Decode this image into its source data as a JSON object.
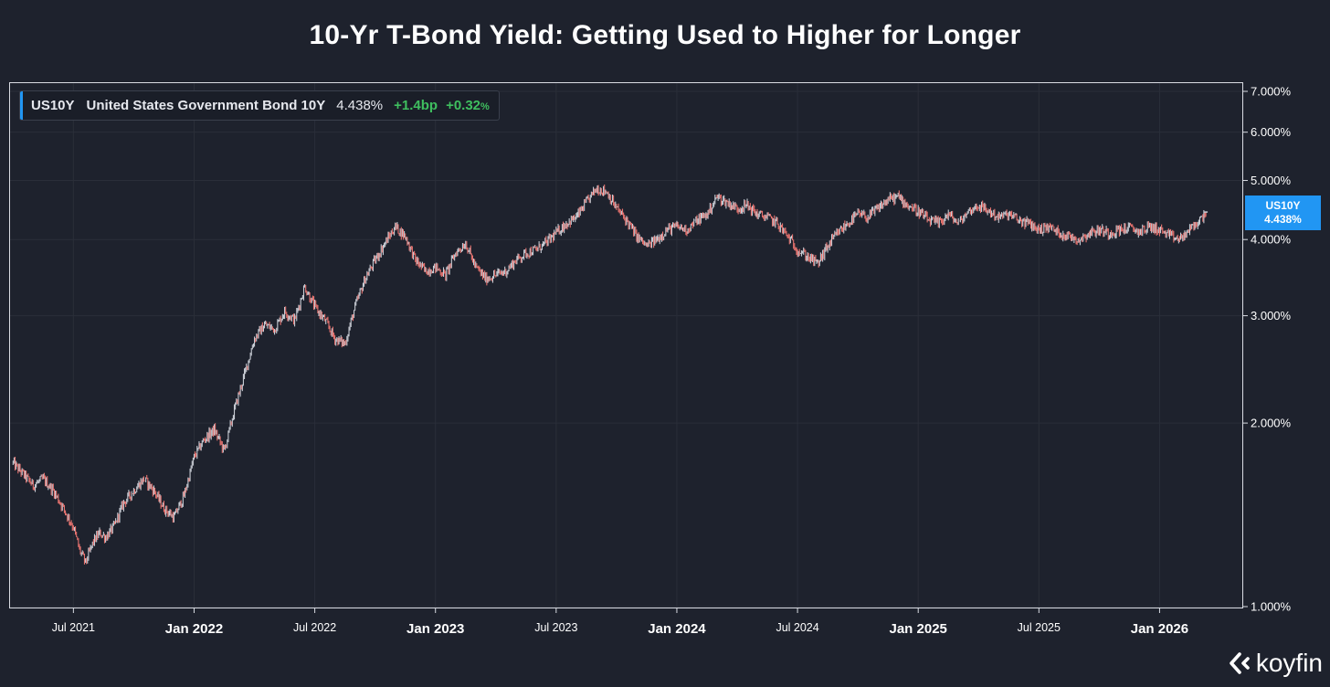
{
  "title": "10-Yr T-Bond Yield: Getting Used to Higher for Longer",
  "legend": {
    "symbol": "US10Y",
    "name": "United States Government Bond 10Y",
    "value": "4.438%",
    "change_bp": "+1.4bp",
    "change_pct": "+0.32",
    "change_pct_unit": "%"
  },
  "price_tag": {
    "symbol": "US10Y",
    "value": "4.438%"
  },
  "brand": {
    "name": "koyfin",
    "logo_icon": "koyfin-chevron-icon"
  },
  "colors": {
    "background": "#1e222d",
    "up_candle": "#c8ccd4",
    "down_candle": "#e8736f",
    "accent": "#2196f3",
    "positive": "#3fbf5f",
    "grid": "#2a2e39"
  },
  "chart_data": {
    "type": "candlestick-line",
    "title": "10-Yr T-Bond Yield: Getting Used to Higher for Longer",
    "xlabel": "",
    "ylabel": "",
    "yscale": "log",
    "ylim": [
      1.0,
      7.0
    ],
    "xlim": [
      "2021-04",
      "2026-03"
    ],
    "y_ticks": [
      {
        "value": 1.0,
        "label": "1.000%"
      },
      {
        "value": 2.0,
        "label": "2.000%"
      },
      {
        "value": 3.0,
        "label": "3.000%"
      },
      {
        "value": 4.0,
        "label": "4.000%"
      },
      {
        "value": 5.0,
        "label": "5.000%"
      },
      {
        "value": 6.0,
        "label": "6.000%"
      },
      {
        "value": 7.0,
        "label": "7.000%"
      }
    ],
    "x_ticks": [
      {
        "t": 3,
        "label": "Jul 2021",
        "major": false
      },
      {
        "t": 9,
        "label": "Jan 2022",
        "major": true
      },
      {
        "t": 15,
        "label": "Jul 2022",
        "major": false
      },
      {
        "t": 21,
        "label": "Jan 2023",
        "major": true
      },
      {
        "t": 27,
        "label": "Jul 2023",
        "major": false
      },
      {
        "t": 33,
        "label": "Jan 2024",
        "major": true
      },
      {
        "t": 39,
        "label": "Jul 2024",
        "major": false
      },
      {
        "t": 45,
        "label": "Jan 2025",
        "major": true
      },
      {
        "t": 51,
        "label": "Jul 2025",
        "major": false
      },
      {
        "t": 57,
        "label": "Jan 2026",
        "major": true
      }
    ],
    "t_units": "months since 2021-04-01",
    "series": [
      {
        "name": "US10Y",
        "t": [
          0.0,
          0.5,
          1.0,
          1.5,
          2.0,
          2.5,
          3.0,
          3.3,
          3.6,
          4.0,
          4.3,
          4.6,
          5.0,
          5.5,
          6.0,
          6.5,
          7.0,
          7.5,
          8.0,
          8.5,
          9.0,
          9.5,
          10.0,
          10.5,
          11.0,
          11.5,
          12.0,
          12.5,
          13.0,
          13.5,
          14.0,
          14.5,
          15.0,
          15.5,
          16.0,
          16.5,
          17.0,
          17.5,
          18.0,
          18.5,
          19.0,
          19.5,
          20.0,
          20.5,
          21.0,
          21.5,
          22.0,
          22.5,
          23.0,
          23.5,
          24.0,
          24.5,
          25.0,
          25.5,
          26.0,
          26.5,
          27.0,
          27.5,
          28.0,
          28.5,
          29.0,
          29.5,
          30.0,
          30.5,
          31.0,
          31.5,
          32.0,
          32.5,
          33.0,
          33.5,
          34.0,
          34.5,
          35.0,
          35.5,
          36.0,
          36.5,
          37.0,
          37.5,
          38.0,
          38.5,
          39.0,
          39.5,
          40.0,
          40.5,
          41.0,
          41.5,
          42.0,
          42.5,
          43.0,
          43.5,
          44.0,
          44.5,
          45.0,
          45.5,
          46.0,
          46.5,
          47.0,
          47.5,
          48.0,
          48.5,
          49.0,
          49.5,
          50.0,
          50.5,
          51.0,
          51.5,
          52.0,
          52.5,
          53.0,
          53.5,
          54.0,
          54.5,
          55.0,
          55.5,
          56.0,
          56.5,
          57.0,
          57.5,
          58.0,
          58.5,
          59.0,
          59.3
        ],
        "values": [
          1.72,
          1.65,
          1.58,
          1.62,
          1.55,
          1.45,
          1.35,
          1.24,
          1.18,
          1.28,
          1.32,
          1.3,
          1.35,
          1.48,
          1.55,
          1.62,
          1.55,
          1.45,
          1.4,
          1.52,
          1.76,
          1.88,
          1.95,
          1.8,
          2.1,
          2.4,
          2.75,
          2.9,
          2.85,
          3.05,
          2.95,
          3.35,
          3.1,
          2.95,
          2.75,
          2.7,
          3.1,
          3.45,
          3.7,
          3.95,
          4.2,
          4.05,
          3.7,
          3.55,
          3.6,
          3.5,
          3.8,
          3.95,
          3.6,
          3.45,
          3.5,
          3.55,
          3.7,
          3.8,
          3.85,
          3.95,
          4.1,
          4.25,
          4.35,
          4.6,
          4.85,
          4.8,
          4.5,
          4.3,
          4.05,
          3.9,
          4.0,
          4.15,
          4.2,
          4.15,
          4.3,
          4.4,
          4.7,
          4.6,
          4.5,
          4.55,
          4.4,
          4.35,
          4.25,
          4.05,
          3.85,
          3.75,
          3.65,
          3.9,
          4.1,
          4.25,
          4.4,
          4.35,
          4.5,
          4.65,
          4.7,
          4.55,
          4.45,
          4.3,
          4.25,
          4.4,
          4.25,
          4.45,
          4.55,
          4.45,
          4.35,
          4.4,
          4.3,
          4.25,
          4.15,
          4.2,
          4.1,
          4.05,
          4.0,
          4.1,
          4.15,
          4.1,
          4.15,
          4.18,
          4.12,
          4.2,
          4.15,
          4.05,
          4.0,
          4.15,
          4.3,
          4.438
        ]
      }
    ]
  }
}
